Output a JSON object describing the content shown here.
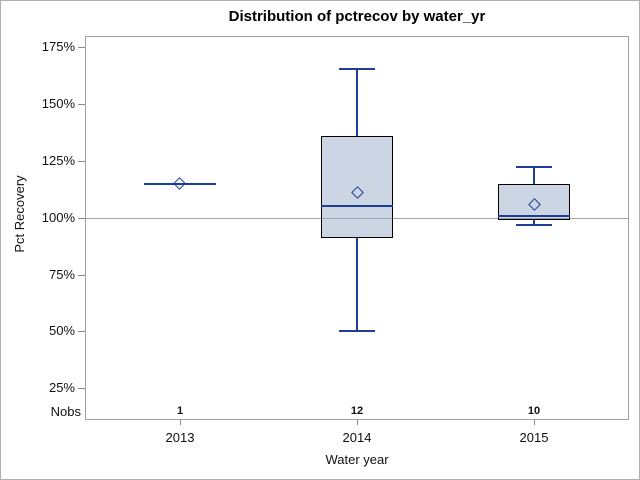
{
  "chart_data": {
    "type": "boxplot",
    "title": "Distribution of pctrecov by water_yr",
    "xlabel": "Water year",
    "ylabel": "Pct Recovery",
    "nobs_row_label": "Nobs",
    "ylim": [
      11,
      180
    ],
    "yticks": [
      25,
      50,
      75,
      100,
      125,
      150,
      175
    ],
    "ytick_suffix": "%",
    "reference_line": 100,
    "grid": false,
    "legend": null,
    "groups": [
      {
        "category": "2013",
        "nobs": "1",
        "min": 115,
        "q1": 115,
        "median": 115,
        "q3": 115,
        "max": 115,
        "mean": 115
      },
      {
        "category": "2014",
        "nobs": "12",
        "min": 50,
        "q1": 91,
        "median": 105,
        "q3": 136,
        "max": 166,
        "mean": 111
      },
      {
        "category": "2015",
        "nobs": "10",
        "min": 97,
        "q1": 99,
        "median": 101,
        "q3": 115,
        "max": 123,
        "mean": 106
      }
    ]
  },
  "colors": {
    "box_fill": "#ccd5e3",
    "box_border": "#000000",
    "whisker": "#1d3d99",
    "median": "#1d3d99",
    "mean_marker": "#1d3d99",
    "reference_line": "#a3a3a3",
    "frame_border": "#a0a0a0",
    "tick_mark": "#8a8a8a",
    "outer_border": "#b0b0b0",
    "background": "#ffffff",
    "text": "#000000"
  }
}
